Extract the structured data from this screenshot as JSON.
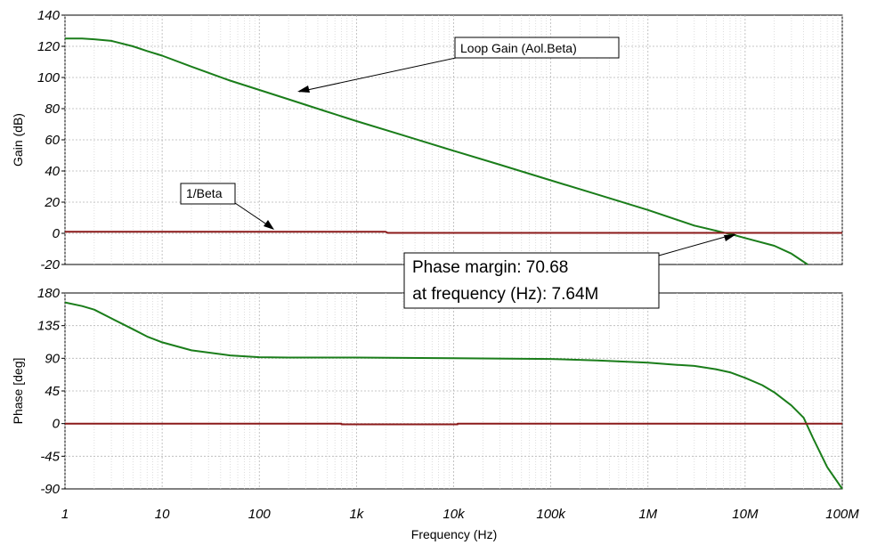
{
  "chart_data": [
    {
      "type": "line",
      "ylabel": "Gain (dB)",
      "ylim": [
        -20,
        140
      ],
      "yticks": [
        "140",
        "120",
        "100",
        "80",
        "60",
        "40",
        "20",
        "0",
        "-20"
      ],
      "xscale": "log",
      "xlim": [
        1,
        100000000
      ],
      "grid": true,
      "series": [
        {
          "name": "Loop Gain (Aol.Beta)",
          "color": "#1a7d1a",
          "x": [
            1,
            1.5,
            2,
            3,
            5,
            7,
            10,
            20,
            50,
            100,
            200,
            500,
            1000,
            3000,
            10000,
            30000,
            100000,
            300000,
            1000000,
            3000000,
            7640000,
            10000000,
            20000000,
            30000000,
            44000000
          ],
          "y": [
            125,
            125,
            124.5,
            123.5,
            120,
            117,
            114,
            107,
            98,
            92,
            86,
            78,
            72,
            63,
            53,
            44,
            34,
            25,
            15,
            5,
            -1,
            -3,
            -8,
            -13,
            -20
          ]
        },
        {
          "name": "1/Beta",
          "color": "#8b1a1a",
          "x": [
            1,
            2000,
            2100,
            100000000
          ],
          "y": [
            1,
            1,
            0.3,
            0.3
          ]
        }
      ],
      "annotations": [
        {
          "text": "Loop Gain (Aol.Beta)",
          "points_to": [
            230,
            90
          ]
        },
        {
          "text": "1/Beta",
          "points_to": [
            130,
            1
          ]
        }
      ]
    },
    {
      "type": "line",
      "ylabel": "Phase [deg]",
      "xlabel": "Frequency (Hz)",
      "ylim": [
        -90,
        180
      ],
      "yticks": [
        "180",
        "135",
        "90",
        "45",
        "0",
        "-45",
        "-90"
      ],
      "xscale": "log",
      "xlim": [
        1,
        100000000
      ],
      "xticks": [
        "1",
        "10",
        "100",
        "1k",
        "10k",
        "100k",
        "1M",
        "10M",
        "100M"
      ],
      "grid": true,
      "series": [
        {
          "name": "Loop Gain (Aol.Beta)",
          "color": "#1a7d1a",
          "x": [
            1,
            1.5,
            2,
            3,
            5,
            7,
            10,
            20,
            50,
            100,
            200,
            500,
            1000,
            10000,
            100000,
            300000,
            1000000,
            2000000,
            3000000,
            5000000,
            7000000,
            10000000,
            15000000,
            20000000,
            30000000,
            40000000,
            50000000,
            70000000,
            100000000
          ],
          "y": [
            167,
            162,
            157,
            145,
            130,
            120,
            112,
            101,
            94,
            91.5,
            91,
            91,
            91,
            90,
            89,
            87,
            84,
            81,
            79.5,
            75,
            70.7,
            63,
            53,
            43,
            25,
            8,
            -20,
            -60,
            -90
          ]
        },
        {
          "name": "1/Beta",
          "color": "#8b1a1a",
          "x": [
            1,
            700,
            700,
            11000,
            11000,
            100000000
          ],
          "y": [
            0,
            0,
            -1,
            -1,
            0,
            0
          ]
        }
      ]
    }
  ],
  "phase_margin_box": {
    "line1": "Phase margin: 70.68",
    "line2": " at frequency (Hz): 7.64M"
  }
}
